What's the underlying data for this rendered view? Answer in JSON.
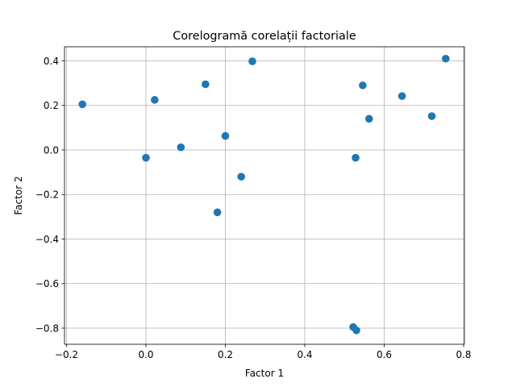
{
  "chart_data": {
    "type": "scatter",
    "title": "Corelogramă corelații factoriale",
    "xlabel": "Factor 1",
    "ylabel": "Factor 2",
    "xlim": [
      -0.2,
      0.8
    ],
    "ylim": [
      -0.8,
      0.4
    ],
    "x_ticks": [
      "−0.2",
      "0.0",
      "0.2",
      "0.4",
      "0.6",
      "0.8"
    ],
    "y_ticks": [
      "−0.8",
      "−0.6",
      "−0.4",
      "−0.2",
      "0.0",
      "0.2",
      "0.4"
    ],
    "grid": true,
    "marker_color": "#1f77b4",
    "points": [
      {
        "x": -0.16,
        "y": 0.205
      },
      {
        "x": 0.0,
        "y": -0.035
      },
      {
        "x": 0.022,
        "y": 0.225
      },
      {
        "x": 0.088,
        "y": 0.012
      },
      {
        "x": 0.15,
        "y": 0.295
      },
      {
        "x": 0.18,
        "y": -0.28
      },
      {
        "x": 0.2,
        "y": 0.063
      },
      {
        "x": 0.24,
        "y": -0.12
      },
      {
        "x": 0.268,
        "y": 0.398
      },
      {
        "x": 0.522,
        "y": -0.795
      },
      {
        "x": 0.528,
        "y": -0.035
      },
      {
        "x": 0.53,
        "y": -0.81
      },
      {
        "x": 0.546,
        "y": 0.29
      },
      {
        "x": 0.562,
        "y": 0.14
      },
      {
        "x": 0.645,
        "y": 0.242
      },
      {
        "x": 0.72,
        "y": 0.152
      },
      {
        "x": 0.755,
        "y": 0.41
      }
    ]
  }
}
